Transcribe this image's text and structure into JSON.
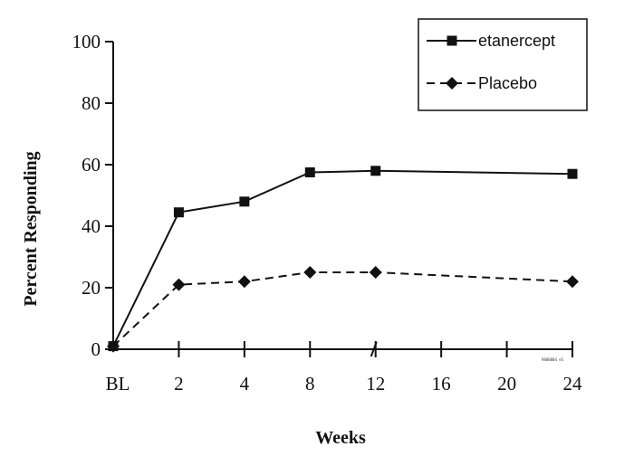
{
  "chart_data": {
    "type": "line",
    "title": "",
    "xlabel": "Weeks",
    "ylabel": "Percent Responding",
    "x_ticks": [
      "BL",
      "2",
      "4",
      "8",
      "12",
      "16",
      "20",
      "24"
    ],
    "y_ticks": [
      "0",
      "20",
      "40",
      "60",
      "80",
      "100"
    ],
    "ylim": [
      0,
      100
    ],
    "grid": false,
    "legend_position": "top-right",
    "figure_code": "9800004 e5",
    "series": [
      {
        "name": "etanercept",
        "marker": "square",
        "line": "solid",
        "x": [
          "BL",
          "2",
          "4",
          "8",
          "12",
          "24"
        ],
        "values": [
          1,
          44.5,
          48,
          57.5,
          58,
          57
        ]
      },
      {
        "name": "Placebo",
        "marker": "diamond",
        "line": "dashed",
        "x": [
          "BL",
          "2",
          "4",
          "8",
          "12",
          "24"
        ],
        "values": [
          1,
          21,
          22,
          25,
          25,
          22
        ]
      }
    ]
  }
}
